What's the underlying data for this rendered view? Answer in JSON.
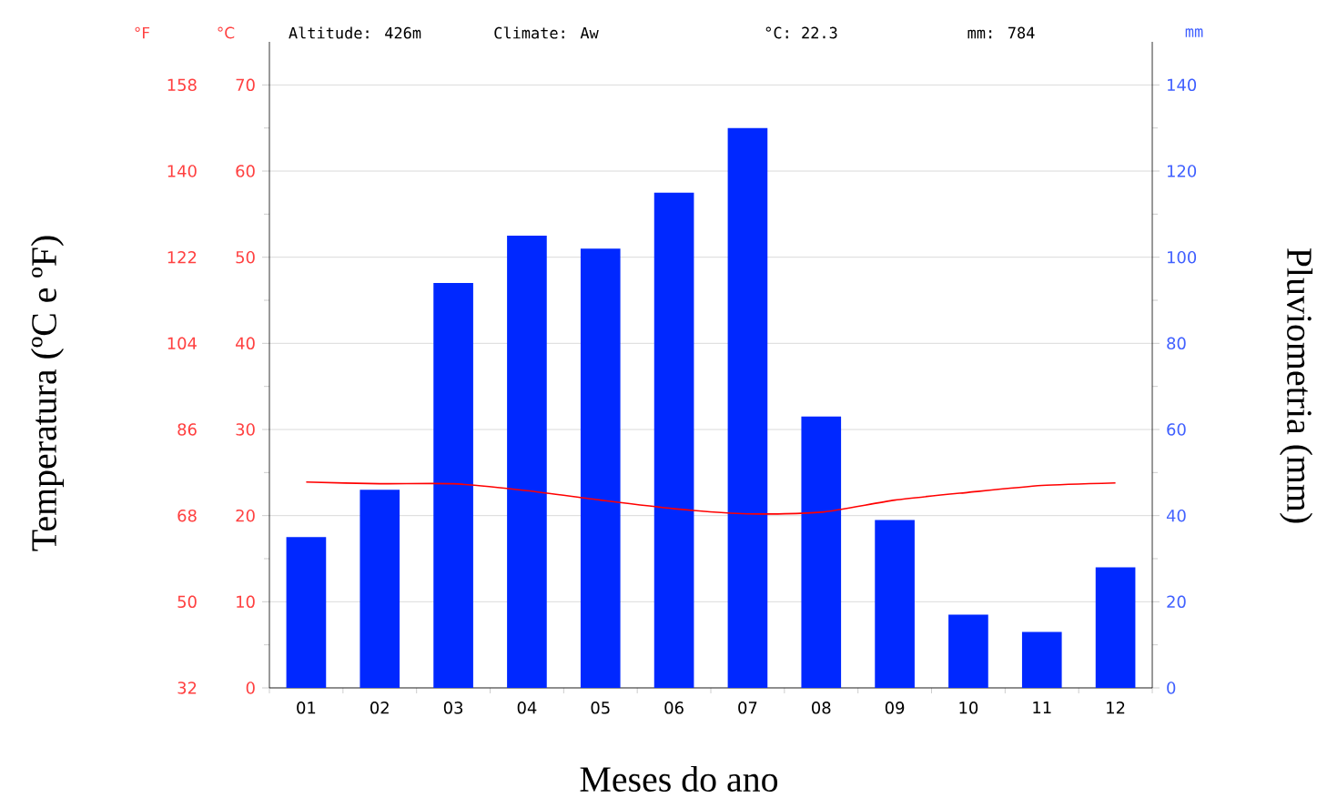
{
  "chart_data": {
    "type": "bar",
    "categories": [
      "01",
      "02",
      "03",
      "04",
      "05",
      "06",
      "07",
      "08",
      "09",
      "10",
      "11",
      "12"
    ],
    "xlabel": "Meses do ano",
    "ylabel": "Temperatura (ºC e ºF)",
    "y2label": "Pluviometria (mm)",
    "series": [
      {
        "axis": "y2",
        "color": "#0028ff",
        "values": [
          35,
          46,
          94,
          105,
          102,
          115,
          130,
          63,
          39,
          17,
          13,
          28
        ]
      },
      {
        "type": "line",
        "color": "#ff0000",
        "values": [
          23.9,
          23.7,
          23.7,
          22.9,
          21.8,
          20.8,
          20.2,
          20.4,
          21.8,
          22.7,
          23.5,
          23.8
        ]
      }
    ],
    "ylim": [
      0,
      75
    ],
    "yticks": [
      0,
      10,
      20,
      30,
      40,
      50,
      60,
      70
    ],
    "y2lim": [
      0,
      150
    ],
    "y2ticks": [
      0,
      20,
      40,
      60,
      80,
      100,
      120,
      140
    ],
    "y3lim": [
      32,
      167
    ],
    "y3ticks": [
      32,
      50,
      68,
      86,
      104,
      122,
      140,
      158
    ],
    "grid": "y",
    "marker": "none",
    "annotations": [
      "°F",
      "°C",
      "Altitude: 426m",
      "Climate: Aw",
      "°C: 22.3",
      "mm: 784",
      "mm"
    ]
  }
}
